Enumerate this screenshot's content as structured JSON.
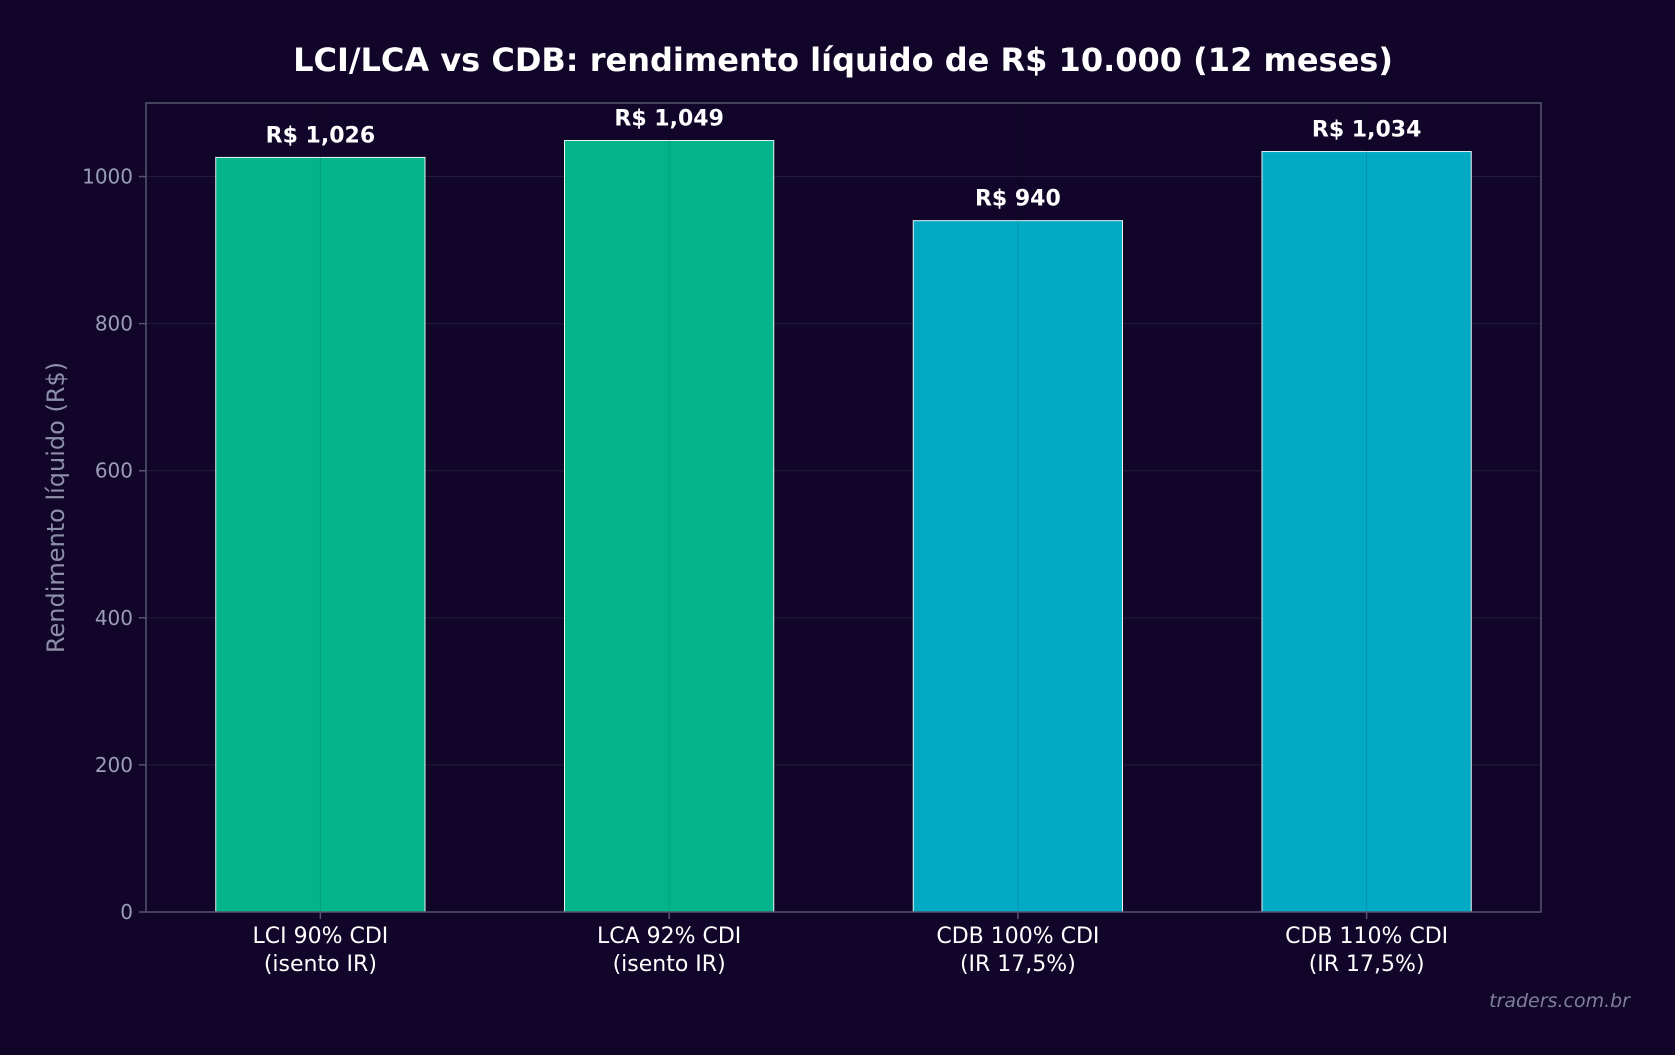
{
  "colors": {
    "background": "#110629",
    "lci_lca": "#02b38c",
    "cdb": "#02a9c5",
    "axis": "#55556e",
    "grid": "#221a3c",
    "bar_edge": "#e8f4f4"
  },
  "watermark": "traders.com.br",
  "chart_data": {
    "type": "bar",
    "title": "LCI/LCA vs CDB: rendimento líquido de R$ 10.000 (12 meses)",
    "xlabel": "",
    "ylabel": "Rendimento líquido (R$)",
    "ylim": [
      0,
      1100
    ],
    "yticks": [
      0,
      200,
      400,
      600,
      800,
      1000
    ],
    "grid": true,
    "categories": [
      [
        "LCI 90% CDI",
        "(isento IR)"
      ],
      [
        "LCA 92% CDI",
        "(isento IR)"
      ],
      [
        "CDB 100% CDI",
        "(IR 17,5%)"
      ],
      [
        "CDB 110% CDI",
        "(IR 17,5%)"
      ]
    ],
    "values": [
      1026,
      1049,
      940,
      1034
    ],
    "value_labels": [
      "R$ 1,026",
      "R$ 1,049",
      "R$ 940",
      "R$ 1,034"
    ],
    "bar_colors": [
      "#02b38c",
      "#02b38c",
      "#02a9c5",
      "#02a9c5"
    ]
  }
}
